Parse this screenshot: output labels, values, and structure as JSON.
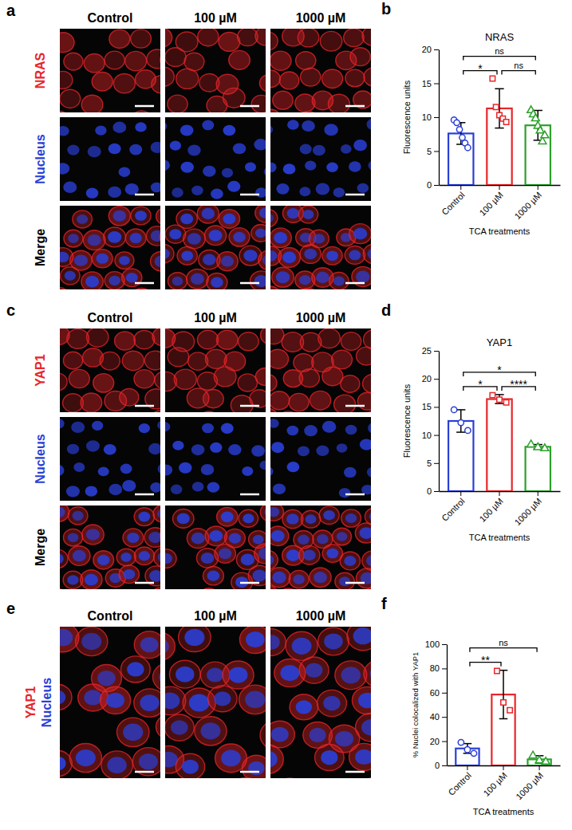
{
  "image_panels": [
    {
      "panel": "a",
      "columns": [
        "Control",
        "100 µM",
        "1000 µM"
      ],
      "rows": [
        {
          "labels": [
            {
              "text": "NRAS",
              "color": "#e8262a"
            }
          ]
        },
        {
          "labels": [
            {
              "text": "Nucleus",
              "color": "#2a3fd6"
            }
          ]
        },
        {
          "labels": [
            {
              "text": "Merge",
              "color": "#000000"
            }
          ]
        }
      ]
    },
    {
      "panel": "c",
      "columns": [
        "Control",
        "100 µM",
        "1000 µM"
      ],
      "rows": [
        {
          "labels": [
            {
              "text": "YAP1",
              "color": "#e8262a"
            }
          ]
        },
        {
          "labels": [
            {
              "text": "Nucleus",
              "color": "#2a3fd6"
            }
          ]
        },
        {
          "labels": [
            {
              "text": "Merge",
              "color": "#000000"
            }
          ]
        }
      ]
    },
    {
      "panel": "e",
      "columns": [
        "Control",
        "100 µM",
        "1000 µM"
      ],
      "rows": [
        {
          "labels": [
            {
              "text": "YAP1",
              "color": "#e8262a"
            },
            {
              "text": "Nucleus",
              "color": "#2a3fd6"
            }
          ]
        }
      ]
    }
  ],
  "chart_data": [
    {
      "type": "bar",
      "panel": "b",
      "title": "NRAS",
      "x_label": "TCA treatments",
      "y_label": "Fluorescence units",
      "categories": [
        "Control",
        "100 µM",
        "1000 µM"
      ],
      "values": [
        7.6,
        11.3,
        8.8
      ],
      "errors": [
        1.6,
        2.9,
        2.2
      ],
      "points": [
        [
          9.6,
          9.2,
          8.2,
          7.0,
          6.2,
          5.5
        ],
        [
          15.7,
          11.5,
          10.3,
          9.8,
          9.3
        ],
        [
          11.0,
          10.4,
          9.8,
          8.7,
          8.0,
          6.4,
          7.3
        ]
      ],
      "colors": [
        "#2a3fd6",
        "#e8262a",
        "#2ca02c"
      ],
      "ylim": [
        0,
        20
      ],
      "yticks": [
        0,
        5,
        10,
        15,
        20
      ],
      "comparisons": [
        {
          "from": "Control",
          "to": "100 µM",
          "label": "*"
        },
        {
          "from": "100 µM",
          "to": "1000 µM",
          "label": "ns"
        },
        {
          "from": "Control",
          "to": "1000 µM",
          "label": "ns"
        }
      ]
    },
    {
      "type": "bar",
      "panel": "d",
      "title": "YAP1",
      "x_label": "TCA treatments",
      "y_label": "Fluorescence units",
      "categories": [
        "Control",
        "100 µM",
        "1000 µM"
      ],
      "values": [
        12.5,
        16.4,
        7.9
      ],
      "errors": [
        2.0,
        0.8,
        0.4
      ],
      "points": [
        [
          14.5,
          12.2,
          10.8
        ],
        [
          17.1,
          16.3,
          15.8
        ],
        [
          8.3,
          7.8,
          7.6
        ]
      ],
      "colors": [
        "#2a3fd6",
        "#e8262a",
        "#2ca02c"
      ],
      "ylim": [
        0,
        25
      ],
      "yticks": [
        0,
        5,
        10,
        15,
        20,
        25
      ],
      "comparisons": [
        {
          "from": "Control",
          "to": "100 µM",
          "label": "*"
        },
        {
          "from": "100 µM",
          "to": "1000 µM",
          "label": "****"
        },
        {
          "from": "Control",
          "to": "1000 µM",
          "label": "*"
        }
      ]
    },
    {
      "type": "bar",
      "panel": "f",
      "x_label": "TCA treatments",
      "y_label": "% Nuclei colocalized with YAP1",
      "categories": [
        "Control",
        "100 µM",
        "1000 µM"
      ],
      "values": [
        14,
        58.5,
        5
      ],
      "errors": [
        4,
        20,
        3
      ],
      "points": [
        [
          19,
          13,
          10
        ],
        [
          78,
          52,
          45.5
        ],
        [
          8,
          4,
          3
        ]
      ],
      "colors": [
        "#2a3fd6",
        "#e8262a",
        "#2ca02c"
      ],
      "ylim": [
        0,
        100
      ],
      "yticks": [
        0,
        20,
        40,
        60,
        80,
        100
      ],
      "comparisons": [
        {
          "from": "Control",
          "to": "100 µM",
          "label": "**"
        },
        {
          "from": "Control",
          "to": "1000 µM",
          "label": "ns"
        }
      ]
    }
  ]
}
